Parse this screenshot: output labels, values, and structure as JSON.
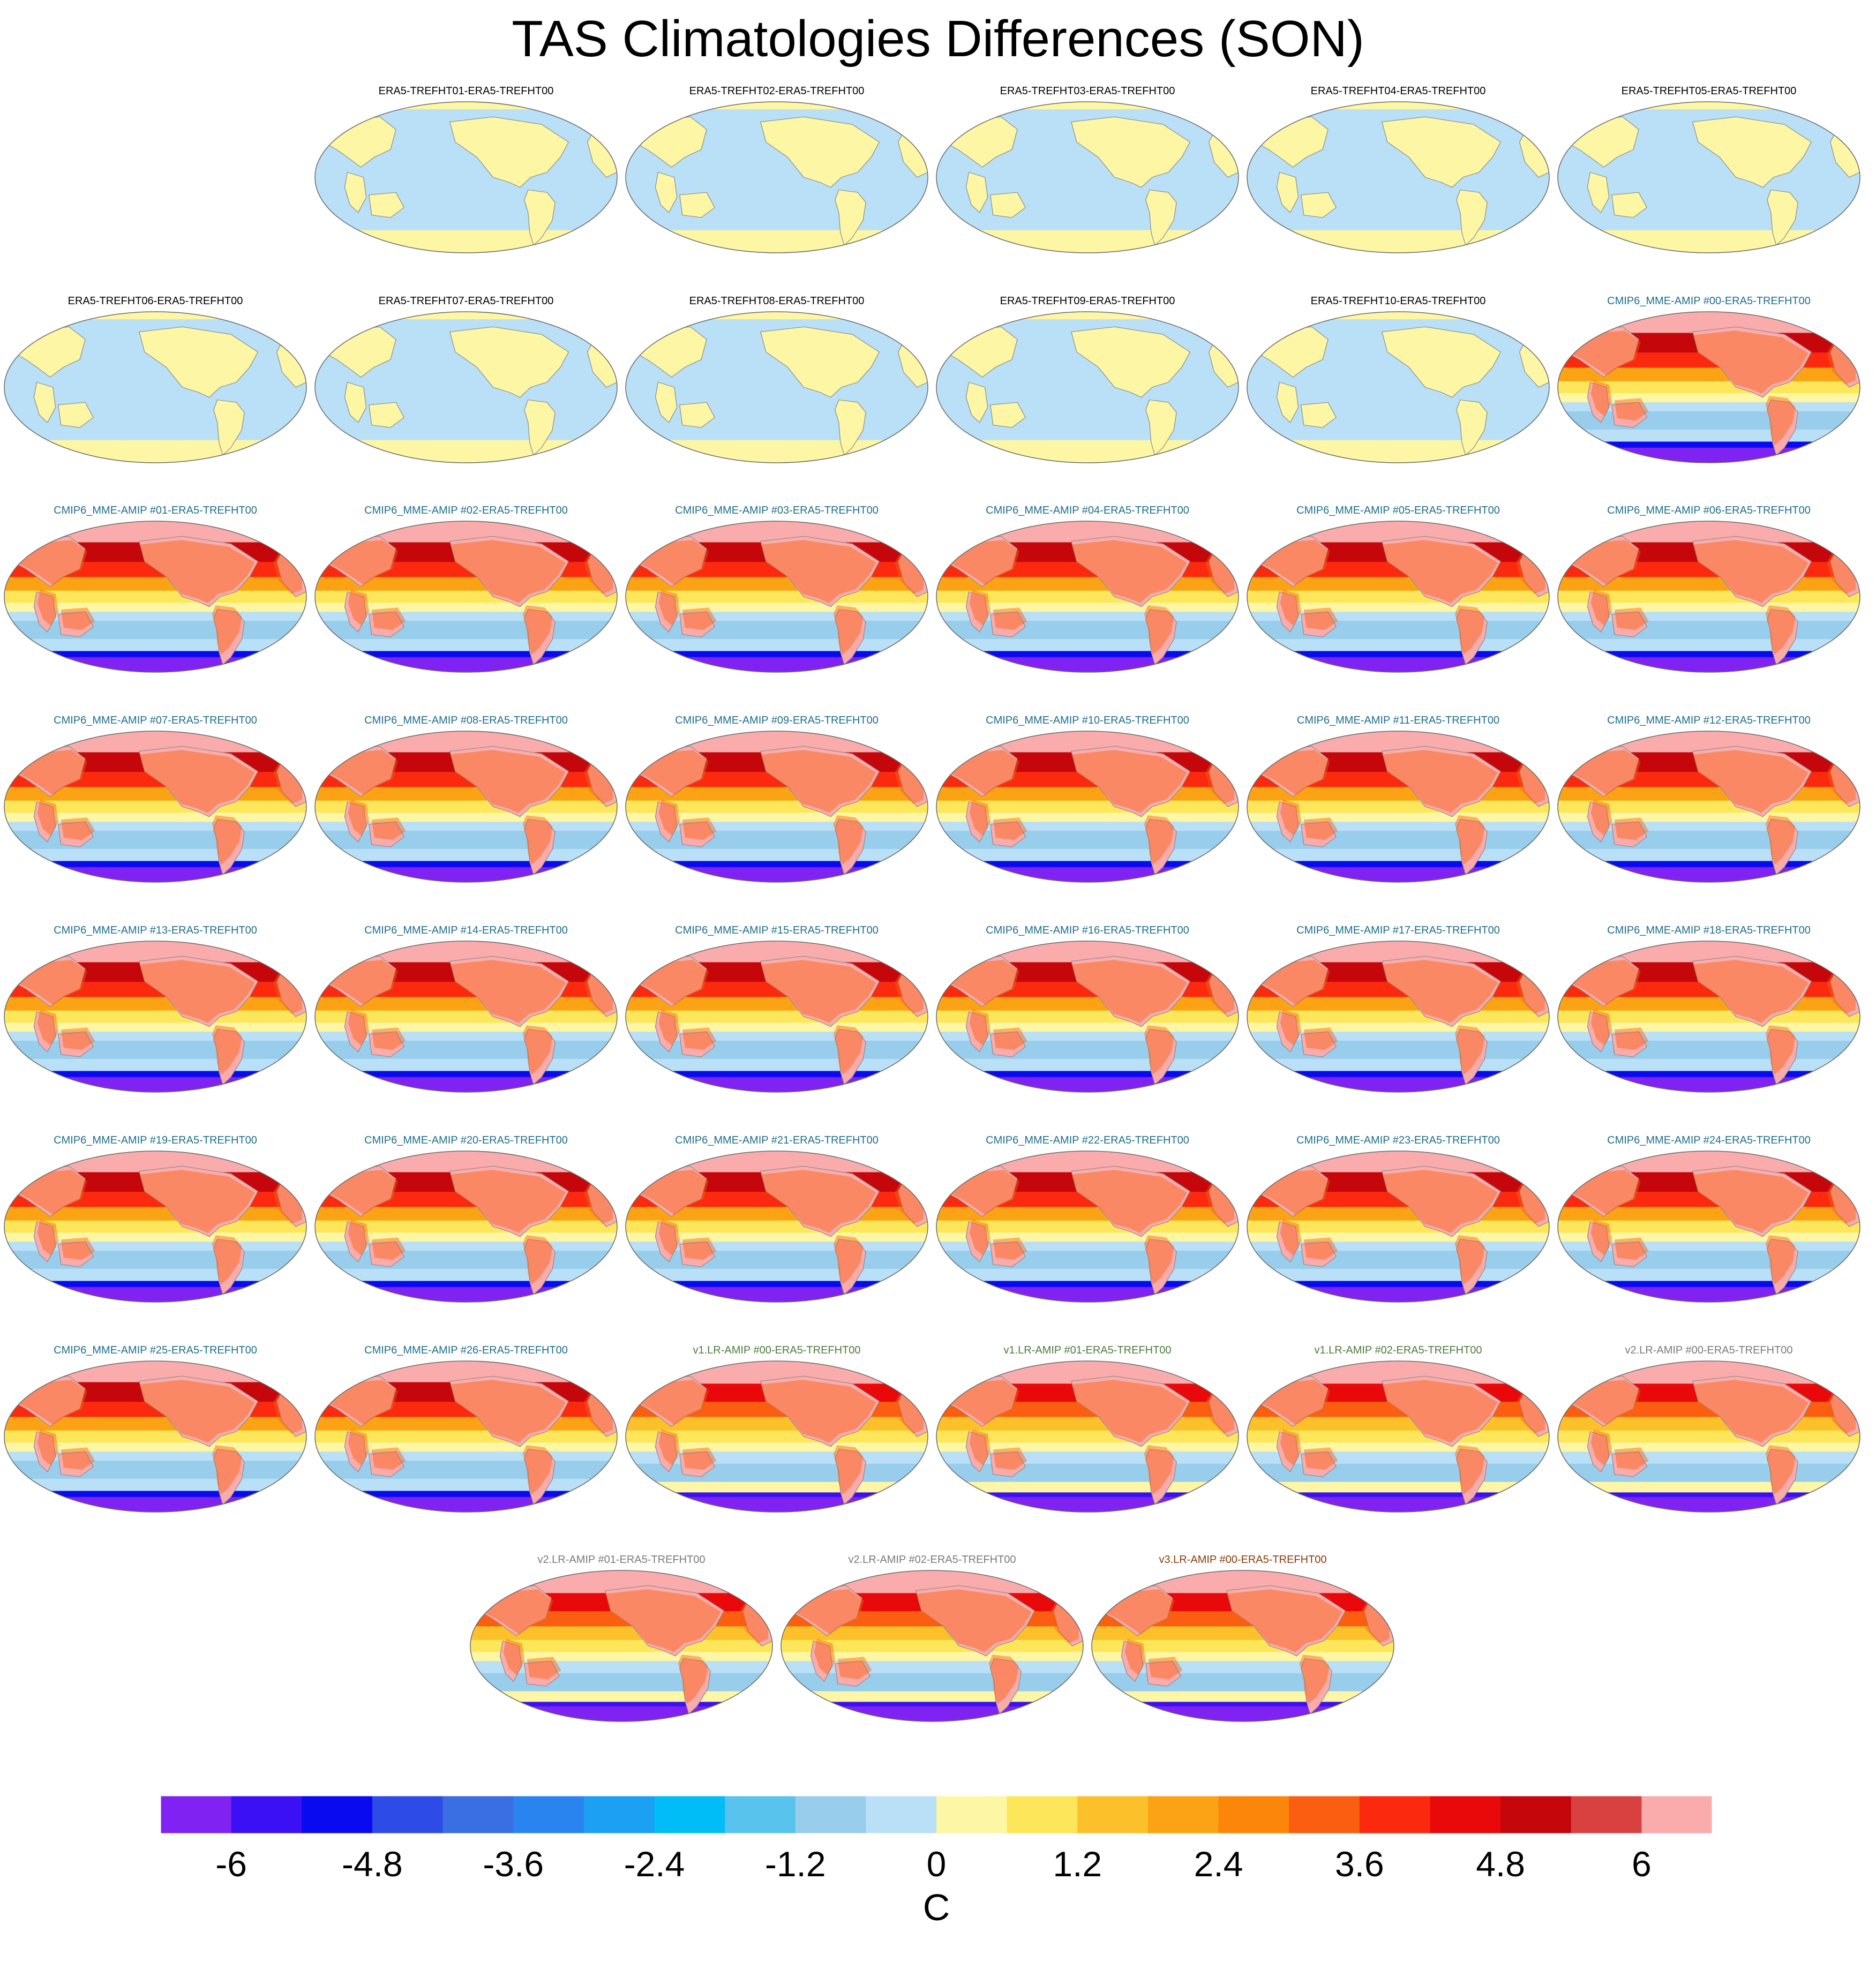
{
  "title": "TAS Climatologies Differences (SON)",
  "chart_data": {
    "type": "heatmap",
    "title": "TAS Climatologies Differences (SON)",
    "projection": "Robinson (global, Pacific-centred)",
    "colorbar": {
      "unit": "C",
      "tick_labels": [
        "-6",
        "-4.8",
        "-3.6",
        "-2.4",
        "-1.2",
        "0",
        "1.2",
        "2.4",
        "3.6",
        "4.8",
        "6"
      ],
      "levels": [
        -6.6,
        -6.0,
        -5.4,
        -4.8,
        -4.2,
        -3.6,
        -3.0,
        -2.4,
        -1.8,
        -1.2,
        -0.6,
        0,
        0.6,
        1.2,
        1.8,
        2.4,
        3.0,
        3.6,
        4.2,
        4.8,
        5.4,
        6.0,
        6.6
      ],
      "colors": [
        "#8022f2",
        "#3c10f5",
        "#0a0af0",
        "#2d4be6",
        "#3a6ee3",
        "#2a84f0",
        "#1ca0f4",
        "#00bcf7",
        "#58c3ec",
        "#98cdec",
        "#b9e0f7",
        "#fdf6a4",
        "#fde65a",
        "#fcc02a",
        "#fba315",
        "#fc860a",
        "#fb5e10",
        "#fb2a0e",
        "#e9080a",
        "#c5070b",
        "#d94040",
        "#faacac"
      ]
    },
    "panels": [
      {
        "title": "ERA5-TREFHT01-ERA5-TREFHT00",
        "group": "era5"
      },
      {
        "title": "ERA5-TREFHT02-ERA5-TREFHT00",
        "group": "era5"
      },
      {
        "title": "ERA5-TREFHT03-ERA5-TREFHT00",
        "group": "era5"
      },
      {
        "title": "ERA5-TREFHT04-ERA5-TREFHT00",
        "group": "era5"
      },
      {
        "title": "ERA5-TREFHT05-ERA5-TREFHT00",
        "group": "era5"
      },
      {
        "title": "ERA5-TREFHT06-ERA5-TREFHT00",
        "group": "era5"
      },
      {
        "title": "ERA5-TREFHT07-ERA5-TREFHT00",
        "group": "era5"
      },
      {
        "title": "ERA5-TREFHT08-ERA5-TREFHT00",
        "group": "era5"
      },
      {
        "title": "ERA5-TREFHT09-ERA5-TREFHT00",
        "group": "era5"
      },
      {
        "title": "ERA5-TREFHT10-ERA5-TREFHT00",
        "group": "era5"
      },
      {
        "title": "CMIP6_MME-AMIP  #00-ERA5-TREFHT00",
        "group": "cmip6"
      },
      {
        "title": "CMIP6_MME-AMIP  #01-ERA5-TREFHT00",
        "group": "cmip6"
      },
      {
        "title": "CMIP6_MME-AMIP  #02-ERA5-TREFHT00",
        "group": "cmip6"
      },
      {
        "title": "CMIP6_MME-AMIP  #03-ERA5-TREFHT00",
        "group": "cmip6"
      },
      {
        "title": "CMIP6_MME-AMIP  #04-ERA5-TREFHT00",
        "group": "cmip6"
      },
      {
        "title": "CMIP6_MME-AMIP  #05-ERA5-TREFHT00",
        "group": "cmip6"
      },
      {
        "title": "CMIP6_MME-AMIP  #06-ERA5-TREFHT00",
        "group": "cmip6"
      },
      {
        "title": "CMIP6_MME-AMIP  #07-ERA5-TREFHT00",
        "group": "cmip6"
      },
      {
        "title": "CMIP6_MME-AMIP  #08-ERA5-TREFHT00",
        "group": "cmip6"
      },
      {
        "title": "CMIP6_MME-AMIP  #09-ERA5-TREFHT00",
        "group": "cmip6"
      },
      {
        "title": "CMIP6_MME-AMIP  #10-ERA5-TREFHT00",
        "group": "cmip6"
      },
      {
        "title": "CMIP6_MME-AMIP  #11-ERA5-TREFHT00",
        "group": "cmip6"
      },
      {
        "title": "CMIP6_MME-AMIP  #12-ERA5-TREFHT00",
        "group": "cmip6"
      },
      {
        "title": "CMIP6_MME-AMIP  #13-ERA5-TREFHT00",
        "group": "cmip6"
      },
      {
        "title": "CMIP6_MME-AMIP  #14-ERA5-TREFHT00",
        "group": "cmip6"
      },
      {
        "title": "CMIP6_MME-AMIP  #15-ERA5-TREFHT00",
        "group": "cmip6"
      },
      {
        "title": "CMIP6_MME-AMIP  #16-ERA5-TREFHT00",
        "group": "cmip6"
      },
      {
        "title": "CMIP6_MME-AMIP  #17-ERA5-TREFHT00",
        "group": "cmip6"
      },
      {
        "title": "CMIP6_MME-AMIP  #18-ERA5-TREFHT00",
        "group": "cmip6"
      },
      {
        "title": "CMIP6_MME-AMIP  #19-ERA5-TREFHT00",
        "group": "cmip6"
      },
      {
        "title": "CMIP6_MME-AMIP  #20-ERA5-TREFHT00",
        "group": "cmip6"
      },
      {
        "title": "CMIP6_MME-AMIP  #21-ERA5-TREFHT00",
        "group": "cmip6"
      },
      {
        "title": "CMIP6_MME-AMIP  #22-ERA5-TREFHT00",
        "group": "cmip6"
      },
      {
        "title": "CMIP6_MME-AMIP  #23-ERA5-TREFHT00",
        "group": "cmip6"
      },
      {
        "title": "CMIP6_MME-AMIP  #24-ERA5-TREFHT00",
        "group": "cmip6"
      },
      {
        "title": "CMIP6_MME-AMIP  #25-ERA5-TREFHT00",
        "group": "cmip6"
      },
      {
        "title": "CMIP6_MME-AMIP  #26-ERA5-TREFHT00",
        "group": "cmip6"
      },
      {
        "title": "v1.LR-AMIP  #00-ERA5-TREFHT00",
        "group": "v1"
      },
      {
        "title": "v1.LR-AMIP  #01-ERA5-TREFHT00",
        "group": "v1"
      },
      {
        "title": "v1.LR-AMIP  #02-ERA5-TREFHT00",
        "group": "v1"
      },
      {
        "title": "v2.LR-AMIP  #00-ERA5-TREFHT00",
        "group": "v2"
      },
      {
        "title": "v2.LR-AMIP  #01-ERA5-TREFHT00",
        "group": "v2"
      },
      {
        "title": "v2.LR-AMIP  #02-ERA5-TREFHT00",
        "group": "v2"
      },
      {
        "title": "v3.LR-AMIP  #00-ERA5-TREFHT00",
        "group": "v3"
      }
    ],
    "group_title_colors": {
      "era5": "#000000",
      "cmip6": "#1e6e8c",
      "v1": "#4e7a3c",
      "v2": "#7a7a7a",
      "v3": "#8a3a0a"
    }
  }
}
